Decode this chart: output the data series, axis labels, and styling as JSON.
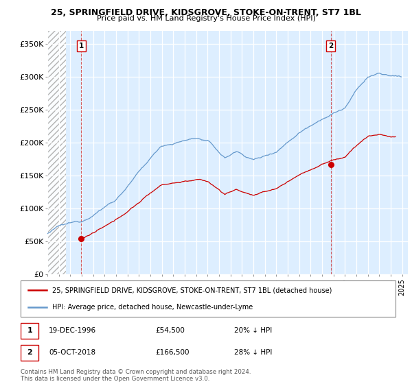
{
  "title": "25, SPRINGFIELD DRIVE, KIDSGROVE, STOKE-ON-TRENT, ST7 1BL",
  "subtitle": "Price paid vs. HM Land Registry's House Price Index (HPI)",
  "ylabel_ticks": [
    "£0",
    "£50K",
    "£100K",
    "£150K",
    "£200K",
    "£250K",
    "£300K",
    "£350K"
  ],
  "ylim": [
    0,
    370000
  ],
  "yticks": [
    0,
    50000,
    100000,
    150000,
    200000,
    250000,
    300000,
    350000
  ],
  "background_color": "#ffffff",
  "plot_bg_color": "#ddeeff",
  "red_line_color": "#cc0000",
  "blue_line_color": "#6699cc",
  "vline1_x": 1996.96,
  "vline2_x": 2018.75,
  "sale1_price": 54500,
  "sale2_price": 166500,
  "annotation1": {
    "label": "1",
    "date": "19-DEC-1996",
    "price": "£54,500",
    "note": "20% ↓ HPI"
  },
  "annotation2": {
    "label": "2",
    "date": "05-OCT-2018",
    "price": "£166,500",
    "note": "28% ↓ HPI"
  },
  "legend_red_label": "25, SPRINGFIELD DRIVE, KIDSGROVE, STOKE-ON-TRENT, ST7 1BL (detached house)",
  "legend_blue_label": "HPI: Average price, detached house, Newcastle-under-Lyme",
  "footnote": "Contains HM Land Registry data © Crown copyright and database right 2024.\nThis data is licensed under the Open Government Licence v3.0.",
  "xmin": 1994.0,
  "xmax": 2025.5
}
